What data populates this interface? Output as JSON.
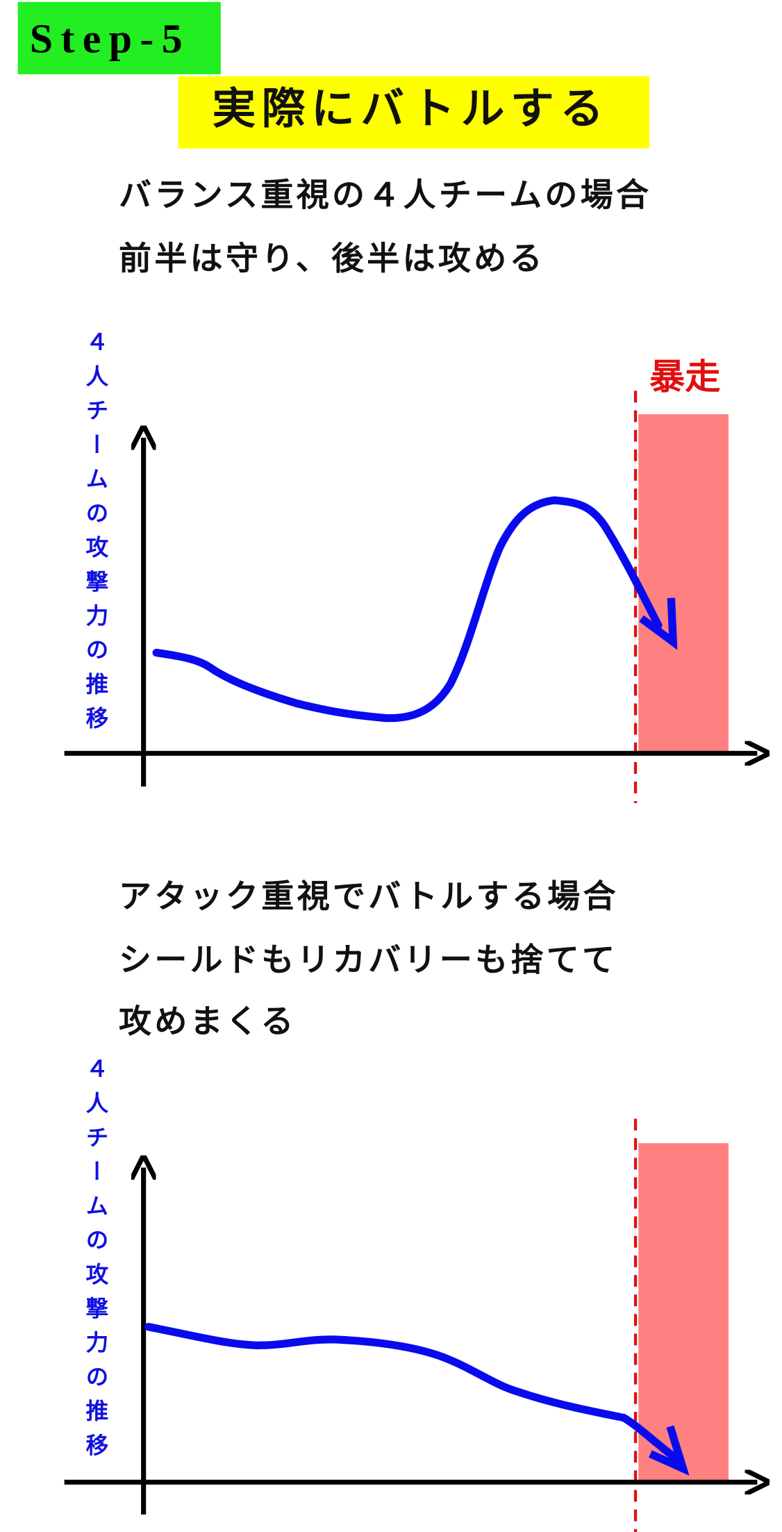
{
  "header": {
    "step": "Step-5",
    "title": "実際にバトルする"
  },
  "sections": [
    {
      "lines": [
        "バランス重視の４人チームの場合",
        "前半は守り、後半は攻める"
      ],
      "axis_label": "４人チームの攻撃力の推移",
      "zone_label": "暴走"
    },
    {
      "lines": [
        "アタック重視でバトルする場合",
        "シールドもリカバリーも捨てて",
        "攻めまくる"
      ],
      "axis_label": "４人チームの攻撃力の推移"
    }
  ]
}
